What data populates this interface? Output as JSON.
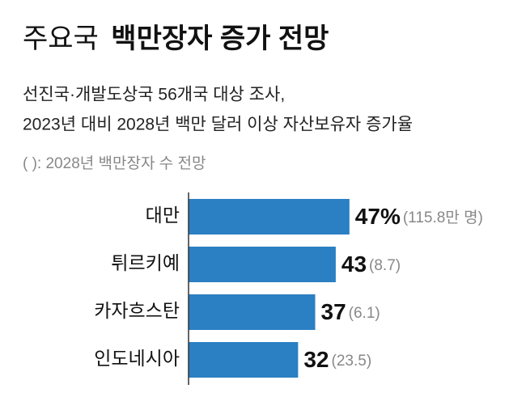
{
  "chart_data": {
    "type": "bar",
    "orientation": "horizontal",
    "title_parts": [
      "주요국",
      "백만장자 증가 전망"
    ],
    "subtitle_lines": [
      "선진국·개발도상국 56개국 대상 조사,",
      "2023년 대비 2028년 백만 달러 이상 자산보유자 증가율"
    ],
    "note": "( ): 2028년 백만장자 수 전망",
    "categories": [
      "대만",
      "튀르키예",
      "카자흐스탄",
      "인도네시아"
    ],
    "values": [
      47,
      43,
      37,
      32
    ],
    "value_labels": [
      "47%",
      "43",
      "37",
      "32"
    ],
    "extra_labels": [
      "(115.8만 명)",
      "(8.7)",
      "(6.1)",
      "(23.5)"
    ],
    "color": "#2b7fc3",
    "xlim": [
      0,
      50
    ]
  }
}
